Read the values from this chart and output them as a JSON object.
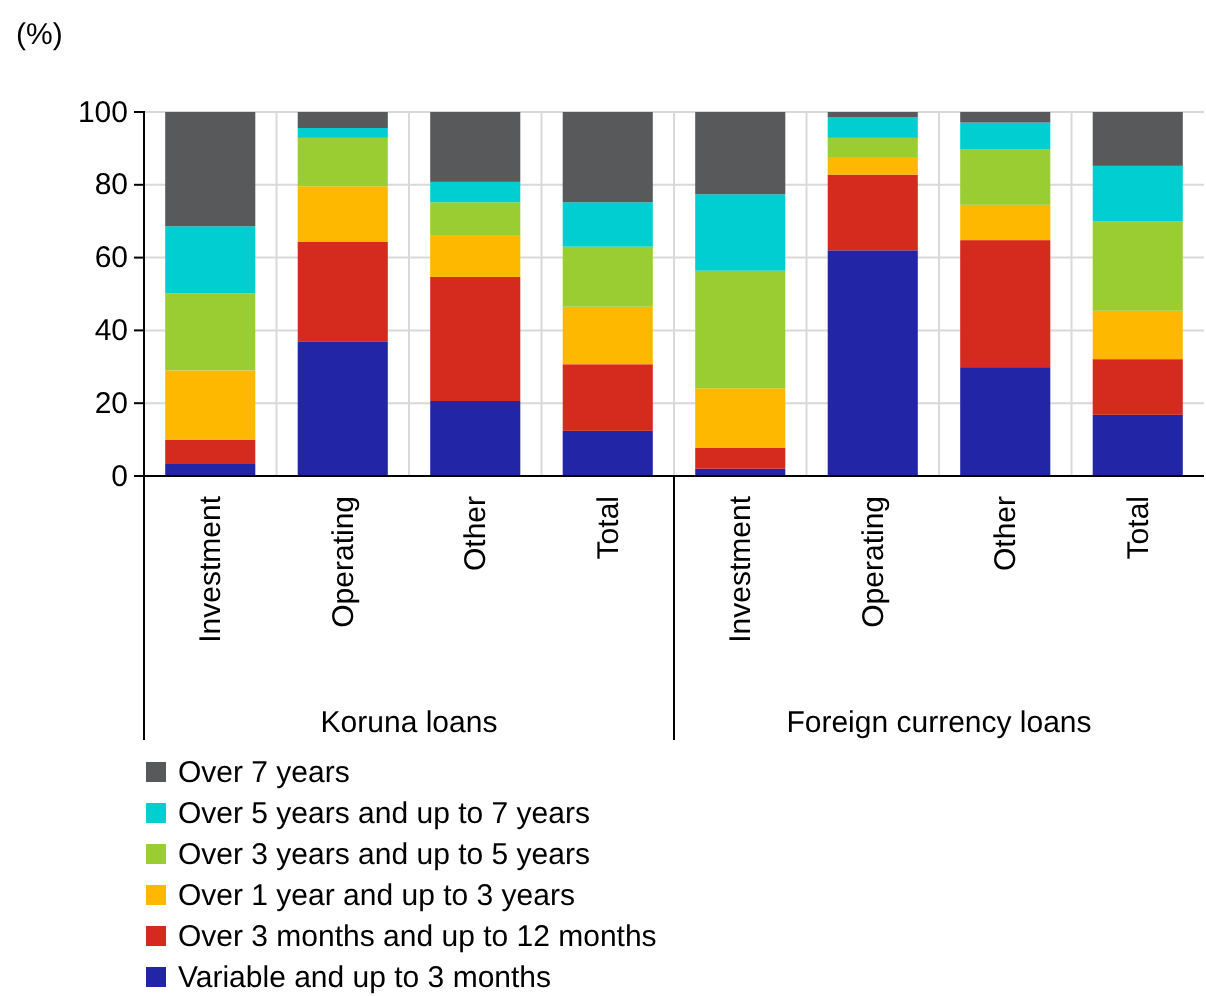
{
  "chart_data": {
    "type": "bar",
    "stacked": true,
    "ylabel": "(%)",
    "categories": [
      "Investment",
      "Operating",
      "Other",
      "Total",
      "Investment",
      "Operating",
      "Other",
      "Total"
    ],
    "annotations": [
      "Koruna loans",
      "Foreign currency loans"
    ],
    "series": [
      {
        "name": "Variable and up to 3 months",
        "color": "#2226a6",
        "values": [
          3.3,
          37,
          20.6,
          12.4,
          2,
          62,
          29.9,
          16.8
        ]
      },
      {
        "name": "Over 3 months and up to 12 months",
        "color": "#d42b1e",
        "values": [
          6.7,
          27.4,
          34.1,
          18.3,
          5.7,
          20.8,
          34.9,
          15.3
        ]
      },
      {
        "name": "Over 1 year and up to 3 years",
        "color": "#ffb800",
        "values": [
          19,
          15.2,
          11.5,
          15.8,
          16.4,
          4.6,
          9.7,
          13.3
        ]
      },
      {
        "name": "Over 3 years and up to 5 years",
        "color": "#9acd32",
        "values": [
          21.2,
          13.3,
          9,
          16.5,
          32.3,
          5.5,
          15.3,
          24.5
        ]
      },
      {
        "name": "Over 5 years and up to 7 years",
        "color": "#00ced1",
        "values": [
          18.4,
          2.7,
          5.6,
          12.2,
          21,
          5.6,
          7.3,
          15.3
        ]
      },
      {
        "name": "Over 7 years",
        "color": "#58595b",
        "values": [
          31.4,
          4.4,
          19.2,
          24.8,
          22.6,
          1.5,
          2.9,
          14.8
        ]
      }
    ],
    "ylim": [
      0,
      100
    ],
    "yticks": [
      0,
      20,
      40,
      60,
      80,
      100
    ],
    "grid": true,
    "legend": "bottom"
  }
}
